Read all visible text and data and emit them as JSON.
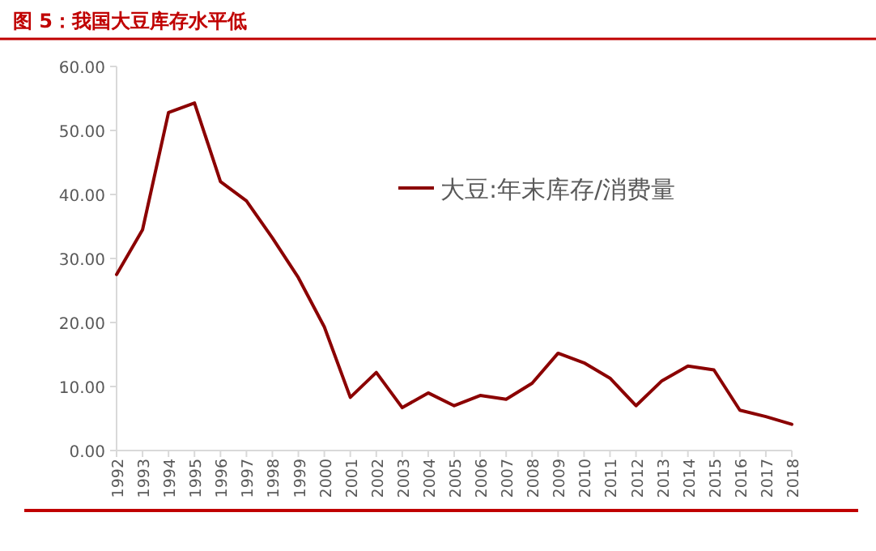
{
  "chart_data": {
    "type": "line",
    "title": "图 5：我国大豆库存水平低",
    "categories": [
      "1992",
      "1993",
      "1994",
      "1995",
      "1996",
      "1997",
      "1998",
      "1999",
      "2000",
      "2001",
      "2002",
      "2003",
      "2004",
      "2005",
      "2006",
      "2007",
      "2008",
      "2009",
      "2010",
      "2011",
      "2012",
      "2013",
      "2014",
      "2015",
      "2016",
      "2017",
      "2018"
    ],
    "series": [
      {
        "name": "大豆:年末库存/消费量",
        "color": "#8b0000",
        "values": [
          27.5,
          34.5,
          52.8,
          54.3,
          42.0,
          39.0,
          33.2,
          27.0,
          19.3,
          8.3,
          12.2,
          6.7,
          9.0,
          7.0,
          8.6,
          8.0,
          10.5,
          15.2,
          13.7,
          11.3,
          7.0,
          10.9,
          13.2,
          12.6,
          6.3,
          5.3,
          4.1
        ]
      }
    ],
    "ylim": [
      0,
      60
    ],
    "yticks": [
      {
        "value": 0,
        "label": "0.00"
      },
      {
        "value": 10,
        "label": "10.00"
      },
      {
        "value": 20,
        "label": "20.00"
      },
      {
        "value": 30,
        "label": "30.00"
      },
      {
        "value": 40,
        "label": "40.00"
      },
      {
        "value": 50,
        "label": "50.00"
      },
      {
        "value": 60,
        "label": "60.00"
      }
    ],
    "legend": "right",
    "grid": false,
    "marker": "none",
    "line_style": "solid"
  }
}
